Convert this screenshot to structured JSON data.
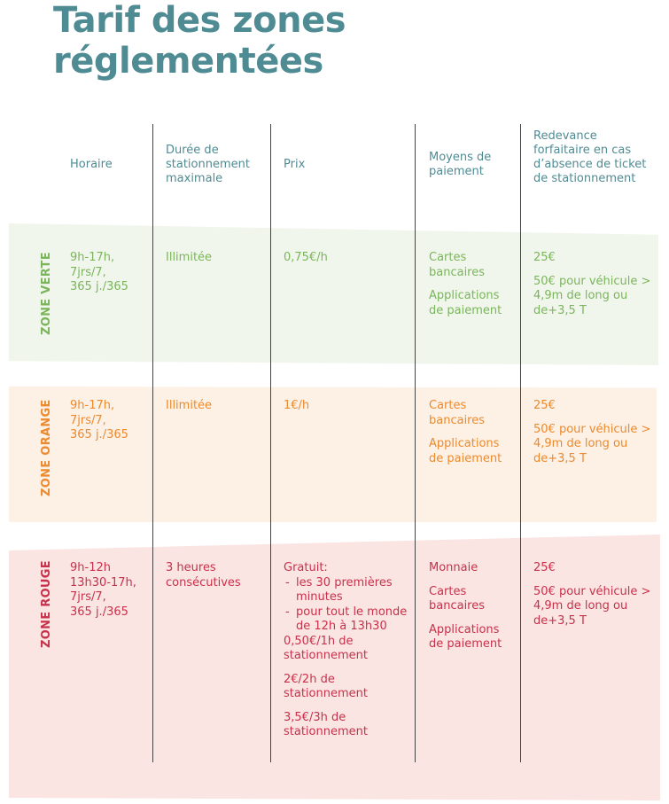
{
  "title": {
    "line1": "Tarif des zones",
    "line2": "réglementées"
  },
  "headers": {
    "horaire": "Horaire",
    "duree": "Durée de stationnement maximale",
    "prix": "Prix",
    "moyens": "Moyens de paiement",
    "redevance": "Redevance forfaitaire en cas d’absence de ticket de stationnement"
  },
  "zones": {
    "verte": {
      "label": "ZONE VERTE",
      "color": "#7ab55b",
      "horaire": [
        "9h-17h,",
        "7jrs/7,",
        "365 j./365"
      ],
      "duree": "Illimitée",
      "prix": "0,75€/h",
      "moyens": [
        "Cartes bancaires",
        "Applications de paiement"
      ],
      "redevance": [
        "25€",
        "50€ pour véhicule > 4,9m de long ou de+3,5 T"
      ]
    },
    "orange": {
      "label": "ZONE ORANGE",
      "color": "#ec8a2e",
      "horaire": [
        "9h-17h,",
        "7jrs/7,",
        "365 j./365"
      ],
      "duree": "Illimitée",
      "prix": "1€/h",
      "moyens": [
        "Cartes bancaires",
        "Applications de paiement"
      ],
      "redevance": [
        "25€",
        "50€ pour véhicule > 4,9m de long ou de+3,5 T"
      ]
    },
    "rouge": {
      "label": "ZONE ROUGE",
      "color": "#c8314a",
      "horaire": [
        "9h-12h",
        "13h30-17h,",
        "7jrs/7,",
        "365 j./365"
      ],
      "duree": "3 heures consécutives",
      "prix": {
        "gratuit": "Gratuit:",
        "items": [
          "les 30 premières minutes",
          "pour tout le monde de 12h à 13h30"
        ],
        "tarifs": [
          "0,50€/1h de stationnement",
          "2€/2h de stationnement",
          "3,5€/3h de stationnement"
        ]
      },
      "moyens": [
        "Monnaie",
        "Cartes bancaires",
        "Applications de paiement"
      ],
      "redevance": [
        "25€",
        "50€ pour véhicule > 4,9m de long ou de+3,5 T"
      ]
    }
  }
}
